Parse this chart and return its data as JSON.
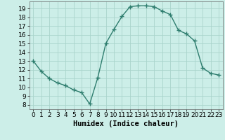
{
  "x": [
    0,
    1,
    2,
    3,
    4,
    5,
    6,
    7,
    8,
    9,
    10,
    11,
    12,
    13,
    14,
    15,
    16,
    17,
    18,
    19,
    20,
    21,
    22,
    23
  ],
  "y": [
    13,
    11.8,
    11.0,
    10.5,
    10.2,
    9.7,
    9.4,
    8.1,
    11.1,
    15.0,
    16.6,
    18.1,
    19.2,
    19.3,
    19.3,
    19.2,
    18.7,
    18.3,
    16.5,
    16.1,
    15.3,
    12.2,
    11.6,
    11.4
  ],
  "line_color": "#2e7d6e",
  "marker": "+",
  "markersize": 4,
  "linewidth": 1.0,
  "bg_color": "#cceee8",
  "grid_color": "#aad4cc",
  "xlabel": "Humidex (Indice chaleur)",
  "xlabel_fontsize": 7.5,
  "xlim": [
    -0.5,
    23.5
  ],
  "ylim": [
    7.5,
    19.8
  ],
  "yticks": [
    8,
    9,
    10,
    11,
    12,
    13,
    14,
    15,
    16,
    17,
    18,
    19
  ],
  "xticks": [
    0,
    1,
    2,
    3,
    4,
    5,
    6,
    7,
    8,
    9,
    10,
    11,
    12,
    13,
    14,
    15,
    16,
    17,
    18,
    19,
    20,
    21,
    22,
    23
  ],
  "tick_fontsize": 6.5
}
